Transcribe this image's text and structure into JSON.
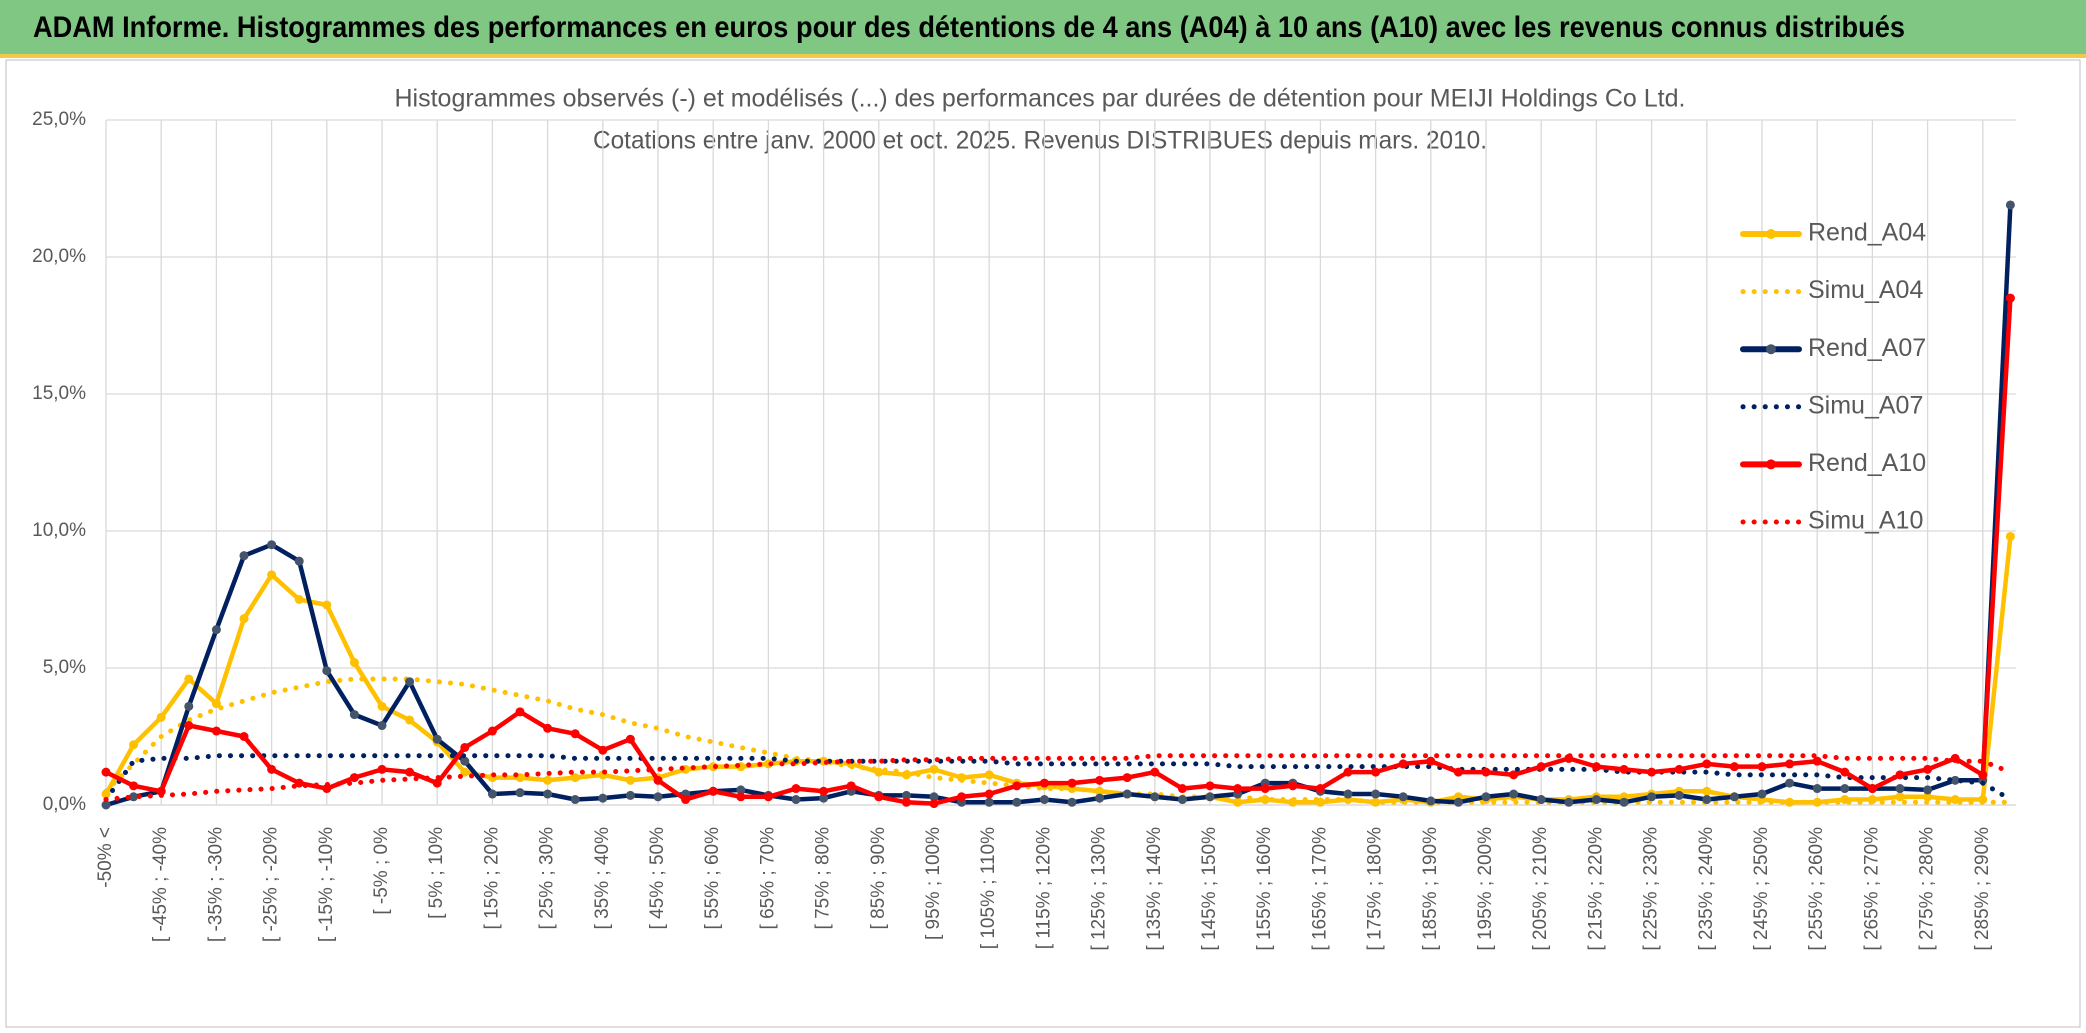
{
  "header": {
    "title": "ADAM Informe. Histogrammes des performances en euros pour des détentions de 4 ans (A04) à 10 ans (A10) avec les revenus connus distribués"
  },
  "chart_data": {
    "type": "line",
    "title": "Histogrammes observés (-) et modélisés (...) des performances par durées de détention pour MEIJI Holdings Co Ltd.",
    "subtitle": "Cotations entre janv. 2000 et oct. 2025. Revenus DISTRIBUES depuis mars. 2010.",
    "categories": [
      "-50% <",
      null,
      "[ -45% ; -40%",
      null,
      "[ -35% ; -30%",
      null,
      "[ -25% ; -20%",
      null,
      "[ -15% ; -10%",
      null,
      "[ -5% ; 0%",
      null,
      "[ 5% ; 10%",
      null,
      "[ 15% ; 20%",
      null,
      "[ 25% ; 30%",
      null,
      "[ 35% ; 40%",
      null,
      "[ 45% ; 50%",
      null,
      "[ 55% ; 60%",
      null,
      "[ 65% ; 70%",
      null,
      "[ 75% ; 80%",
      null,
      "[ 85% ; 90%",
      null,
      "[ 95% ; 100%",
      null,
      "[ 105% ; 110%",
      null,
      "[ 115% ; 120%",
      null,
      "[ 125% ; 130%",
      null,
      "[ 135% ; 140%",
      null,
      "[ 145% ; 150%",
      null,
      "[ 155% ; 160%",
      null,
      "[ 165% ; 170%",
      null,
      "[ 175% ; 180%",
      null,
      "[ 185% ; 190%",
      null,
      "[ 195% ; 200%",
      null,
      "[ 205% ; 210%",
      null,
      "[ 215% ; 220%",
      null,
      "[ 225% ; 230%",
      null,
      "[ 235% ; 240%",
      null,
      "[ 245% ; 250%",
      null,
      "[ 255% ; 260%",
      null,
      "[ 265% ; 270%",
      null,
      "[ 275% ; 280%",
      null,
      "[ 285% ; 290%",
      null
    ],
    "ylim": [
      0,
      25
    ],
    "yticks": [
      {
        "value": 0,
        "label": "0,0%"
      },
      {
        "value": 5,
        "label": "5,0%"
      },
      {
        "value": 10,
        "label": "10,0%"
      },
      {
        "value": 15,
        "label": "15,0%"
      },
      {
        "value": 20,
        "label": "20,0%"
      },
      {
        "value": 25,
        "label": "25,0%"
      }
    ],
    "grid": true,
    "legend": "right",
    "series": [
      {
        "name": "Rend_A04",
        "color": "#FFC000",
        "marker_color": "#FFC000",
        "style": "solid",
        "values": [
          0.4,
          2.2,
          3.2,
          4.6,
          3.7,
          6.8,
          8.4,
          7.5,
          7.3,
          5.2,
          3.6,
          3.1,
          2.3,
          1.2,
          1.0,
          1.0,
          0.9,
          1.0,
          1.1,
          0.9,
          1.0,
          1.3,
          1.4,
          1.4,
          1.5,
          1.6,
          1.6,
          1.5,
          1.2,
          1.1,
          1.3,
          1.0,
          1.1,
          0.8,
          0.7,
          0.6,
          0.5,
          0.4,
          0.3,
          0.2,
          0.3,
          0.1,
          0.2,
          0.1,
          0.1,
          0.2,
          0.1,
          0.2,
          0.1,
          0.3,
          0.2,
          0.3,
          0.2,
          0.2,
          0.3,
          0.3,
          0.4,
          0.5,
          0.5,
          0.3,
          0.2,
          0.1,
          0.1,
          0.2,
          0.2,
          0.3,
          0.3,
          0.2,
          0.2,
          9.8
        ]
      },
      {
        "name": "Simu_A04",
        "color": "#FFC000",
        "style": "dotted",
        "values": [
          0.5,
          1.5,
          2.5,
          3.1,
          3.5,
          3.8,
          4.1,
          4.3,
          4.5,
          4.6,
          4.6,
          4.6,
          4.5,
          4.4,
          4.2,
          4.0,
          3.8,
          3.5,
          3.3,
          3.0,
          2.8,
          2.5,
          2.3,
          2.1,
          1.9,
          1.7,
          1.6,
          1.4,
          1.3,
          1.2,
          1.0,
          0.9,
          0.8,
          0.7,
          0.6,
          0.6,
          0.5,
          0.4,
          0.4,
          0.3,
          0.3,
          0.3,
          0.2,
          0.2,
          0.2,
          0.2,
          0.1,
          0.1,
          0.1,
          0.1,
          0.1,
          0.1,
          0.1,
          0.1,
          0.1,
          0.1,
          0.1,
          0.1,
          0.1,
          0.1,
          0.1,
          0.1,
          0.1,
          0.1,
          0.1,
          0.1,
          0.1,
          0.1,
          0.1,
          0.1
        ]
      },
      {
        "name": "Rend_A07",
        "color": "#002060",
        "marker_color": "#44546A",
        "style": "solid",
        "values": [
          0.0,
          0.3,
          0.5,
          3.6,
          6.4,
          9.1,
          9.5,
          8.9,
          4.9,
          3.3,
          2.9,
          4.5,
          2.4,
          1.6,
          0.4,
          0.45,
          0.4,
          0.2,
          0.25,
          0.35,
          0.3,
          0.4,
          0.5,
          0.55,
          0.35,
          0.2,
          0.25,
          0.5,
          0.35,
          0.35,
          0.3,
          0.1,
          0.1,
          0.1,
          0.2,
          0.1,
          0.25,
          0.4,
          0.3,
          0.2,
          0.3,
          0.4,
          0.8,
          0.8,
          0.5,
          0.4,
          0.4,
          0.3,
          0.15,
          0.1,
          0.3,
          0.4,
          0.2,
          0.1,
          0.2,
          0.1,
          0.3,
          0.35,
          0.2,
          0.3,
          0.4,
          0.8,
          0.6,
          0.6,
          0.6,
          0.6,
          0.55,
          0.9,
          0.9,
          21.9
        ]
      },
      {
        "name": "Simu_A07",
        "color": "#002060",
        "style": "dotted",
        "values": [
          0.2,
          1.6,
          1.7,
          1.7,
          1.8,
          1.8,
          1.8,
          1.8,
          1.8,
          1.8,
          1.8,
          1.8,
          1.8,
          1.8,
          1.8,
          1.8,
          1.8,
          1.7,
          1.7,
          1.7,
          1.7,
          1.7,
          1.7,
          1.7,
          1.7,
          1.6,
          1.6,
          1.6,
          1.6,
          1.6,
          1.6,
          1.6,
          1.6,
          1.5,
          1.5,
          1.5,
          1.5,
          1.5,
          1.5,
          1.5,
          1.5,
          1.4,
          1.4,
          1.4,
          1.4,
          1.4,
          1.4,
          1.4,
          1.4,
          1.3,
          1.3,
          1.3,
          1.3,
          1.3,
          1.3,
          1.2,
          1.2,
          1.2,
          1.2,
          1.1,
          1.1,
          1.1,
          1.1,
          1.0,
          1.0,
          1.0,
          1.0,
          0.9,
          0.8,
          0.2
        ]
      },
      {
        "name": "Rend_A10",
        "color": "#FF0000",
        "marker_color": "#FF0000",
        "style": "solid",
        "values": [
          1.2,
          0.7,
          0.5,
          2.9,
          2.7,
          2.5,
          1.3,
          0.8,
          0.6,
          1.0,
          1.3,
          1.2,
          0.8,
          2.1,
          2.7,
          3.4,
          2.8,
          2.6,
          2.0,
          2.4,
          0.9,
          0.2,
          0.5,
          0.3,
          0.3,
          0.6,
          0.5,
          0.7,
          0.3,
          0.1,
          0.05,
          0.3,
          0.4,
          0.7,
          0.8,
          0.8,
          0.9,
          1.0,
          1.2,
          0.6,
          0.7,
          0.6,
          0.6,
          0.7,
          0.6,
          1.2,
          1.2,
          1.5,
          1.6,
          1.2,
          1.2,
          1.1,
          1.4,
          1.7,
          1.4,
          1.3,
          1.2,
          1.3,
          1.5,
          1.4,
          1.4,
          1.5,
          1.6,
          1.2,
          0.6,
          1.1,
          1.3,
          1.7,
          1.1,
          18.5
        ]
      },
      {
        "name": "Simu_A10",
        "color": "#FF0000",
        "style": "dotted",
        "values": [
          0.2,
          0.3,
          0.35,
          0.4,
          0.5,
          0.55,
          0.6,
          0.7,
          0.75,
          0.8,
          0.9,
          0.95,
          1.0,
          1.05,
          1.1,
          1.1,
          1.15,
          1.2,
          1.2,
          1.25,
          1.3,
          1.35,
          1.4,
          1.45,
          1.5,
          1.5,
          1.55,
          1.6,
          1.6,
          1.65,
          1.65,
          1.7,
          1.7,
          1.7,
          1.7,
          1.7,
          1.7,
          1.7,
          1.8,
          1.8,
          1.8,
          1.8,
          1.8,
          1.8,
          1.8,
          1.8,
          1.8,
          1.8,
          1.8,
          1.8,
          1.8,
          1.8,
          1.8,
          1.8,
          1.8,
          1.8,
          1.8,
          1.8,
          1.8,
          1.8,
          1.8,
          1.8,
          1.8,
          1.7,
          1.7,
          1.7,
          1.7,
          1.6,
          1.6,
          1.2
        ]
      }
    ]
  }
}
